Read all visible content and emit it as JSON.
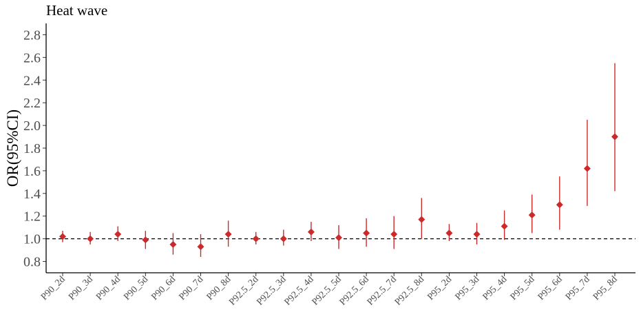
{
  "chart_data": {
    "type": "scatter",
    "title": "Heat wave",
    "xlabel": "",
    "ylabel": "OR(95%CI)",
    "ylim": [
      0.7,
      2.9
    ],
    "yticks": [
      0.8,
      1.0,
      1.2,
      1.4,
      1.6,
      1.8,
      2.0,
      2.2,
      2.4,
      2.6,
      2.8
    ],
    "ytick_labels": [
      "0.8",
      "1.0",
      "1.2",
      "1.4",
      "1.6",
      "1.8",
      "2.0",
      "2.2",
      "2.4",
      "2.6",
      "2.8"
    ],
    "reference_line": 1.0,
    "grid": false,
    "color": "#cc2a2a",
    "categories": [
      "P90_2d",
      "P90_3d",
      "P90_4d",
      "P90_5d",
      "P90_6d",
      "P90_7d",
      "P90_8d",
      "P92.5_2d",
      "P92.5_3d",
      "P92.5_4d",
      "P92.5_5d",
      "P92.5_6d",
      "P92.5_7d",
      "P92.5_8d",
      "P95_2d",
      "P95_3d",
      "P95_4d",
      "P95_5d",
      "P95_6d",
      "P95_7d",
      "P95_8d"
    ],
    "values": [
      1.02,
      1.0,
      1.04,
      0.99,
      0.95,
      0.93,
      1.04,
      1.0,
      1.0,
      1.06,
      1.01,
      1.05,
      1.04,
      1.17,
      1.05,
      1.04,
      1.11,
      1.21,
      1.3,
      1.62,
      1.9
    ],
    "lower": [
      0.97,
      0.95,
      0.98,
      0.91,
      0.86,
      0.84,
      0.93,
      0.95,
      0.94,
      0.98,
      0.91,
      0.93,
      0.91,
      1.0,
      0.98,
      0.95,
      0.99,
      1.05,
      1.08,
      1.29,
      1.42
    ],
    "upper": [
      1.07,
      1.06,
      1.11,
      1.07,
      1.05,
      1.04,
      1.16,
      1.06,
      1.08,
      1.15,
      1.12,
      1.18,
      1.2,
      1.36,
      1.13,
      1.14,
      1.25,
      1.39,
      1.55,
      2.05,
      2.55
    ]
  }
}
